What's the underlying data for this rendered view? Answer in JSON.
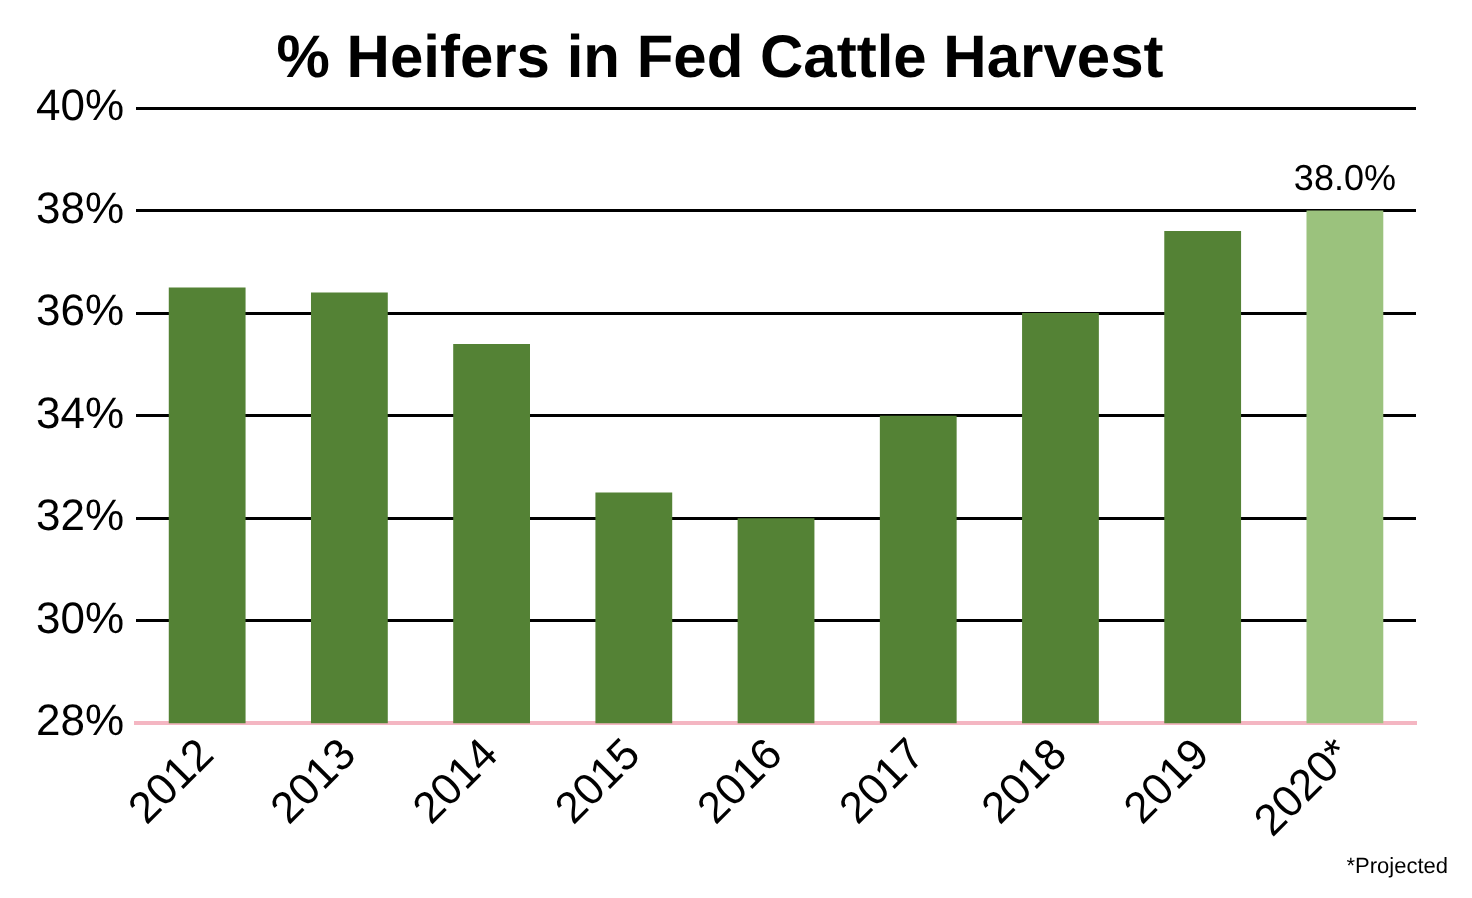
{
  "chart_data": {
    "type": "bar",
    "title": "% Heifers in Fed Cattle Harvest",
    "categories": [
      "2012",
      "2013",
      "2014",
      "2015",
      "2016",
      "2017",
      "2018",
      "2019",
      "2020*"
    ],
    "values": [
      36.5,
      36.4,
      35.4,
      32.5,
      32.0,
      34.0,
      36.0,
      37.6,
      38.0
    ],
    "colors": [
      "#548235",
      "#548235",
      "#548235",
      "#548235",
      "#548235",
      "#548235",
      "#548235",
      "#548235",
      "#9bc27d"
    ],
    "value_labels": [
      null,
      null,
      null,
      null,
      null,
      null,
      null,
      null,
      "38.0%"
    ],
    "ylim": [
      28,
      40
    ],
    "yticks": [
      {
        "value": 28,
        "label": "28%"
      },
      {
        "value": 30,
        "label": "30%"
      },
      {
        "value": 32,
        "label": "32%"
      },
      {
        "value": 34,
        "label": "34%"
      },
      {
        "value": 36,
        "label": "36%"
      },
      {
        "value": 38,
        "label": "38%"
      },
      {
        "value": 40,
        "label": "40%"
      }
    ],
    "grid": "y",
    "legend": false,
    "annotations": [
      "*Projected"
    ]
  }
}
